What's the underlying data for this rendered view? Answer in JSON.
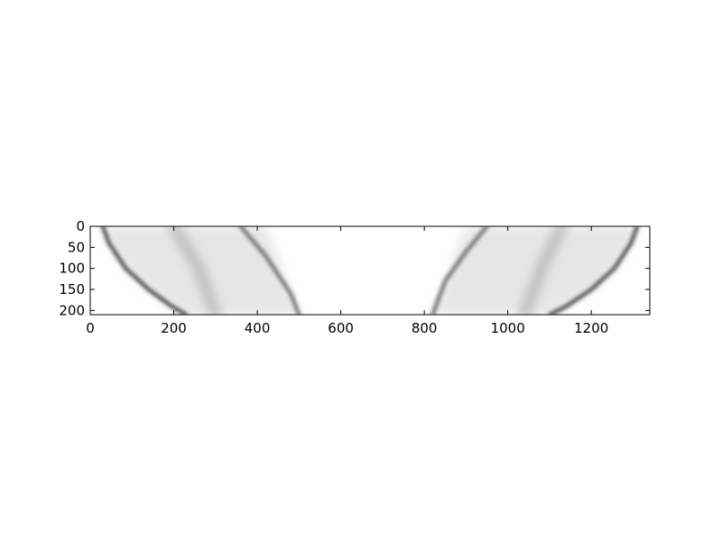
{
  "chart_data": {
    "type": "heatmap",
    "title": "",
    "xlabel": "",
    "ylabel": "",
    "colormap": "grayscale",
    "xlim": [
      0,
      1340
    ],
    "ylim": [
      210,
      0
    ],
    "x_ticks": [
      0,
      200,
      400,
      600,
      800,
      1000,
      1200
    ],
    "y_ticks": [
      0,
      50,
      100,
      150,
      200
    ],
    "grid": false,
    "features": [
      {
        "name": "left-curved-boundary",
        "points": [
          [
            30,
            0
          ],
          [
            45,
            40
          ],
          [
            85,
            100
          ],
          [
            140,
            150
          ],
          [
            195,
            190
          ],
          [
            230,
            210
          ]
        ],
        "intensity": 0.75
      },
      {
        "name": "right-curved-boundary",
        "points": [
          [
            1310,
            0
          ],
          [
            1295,
            40
          ],
          [
            1255,
            100
          ],
          [
            1200,
            150
          ],
          [
            1140,
            190
          ],
          [
            1100,
            210
          ]
        ],
        "intensity": 0.75
      },
      {
        "name": "top-edge",
        "points": [
          [
            30,
            0
          ],
          [
            1310,
            0
          ]
        ],
        "intensity": 0.9
      },
      {
        "name": "bottom-edge",
        "points": [
          [
            200,
            208
          ],
          [
            1140,
            208
          ]
        ],
        "intensity": 0.95
      },
      {
        "name": "left-inner-diagonal",
        "points": [
          [
            360,
            0
          ],
          [
            420,
            70
          ],
          [
            480,
            160
          ],
          [
            500,
            210
          ]
        ],
        "intensity": 0.6
      },
      {
        "name": "right-inner-diagonal",
        "points": [
          [
            950,
            0
          ],
          [
            900,
            60
          ],
          [
            850,
            130
          ],
          [
            820,
            210
          ]
        ],
        "intensity": 0.6
      },
      {
        "name": "left-shadow-diagonal",
        "points": [
          [
            200,
            0
          ],
          [
            260,
            100
          ],
          [
            300,
            210
          ]
        ],
        "intensity": 0.3
      },
      {
        "name": "right-shadow-diagonal",
        "points": [
          [
            1130,
            0
          ],
          [
            1080,
            100
          ],
          [
            1040,
            210
          ]
        ],
        "intensity": 0.3
      }
    ]
  }
}
